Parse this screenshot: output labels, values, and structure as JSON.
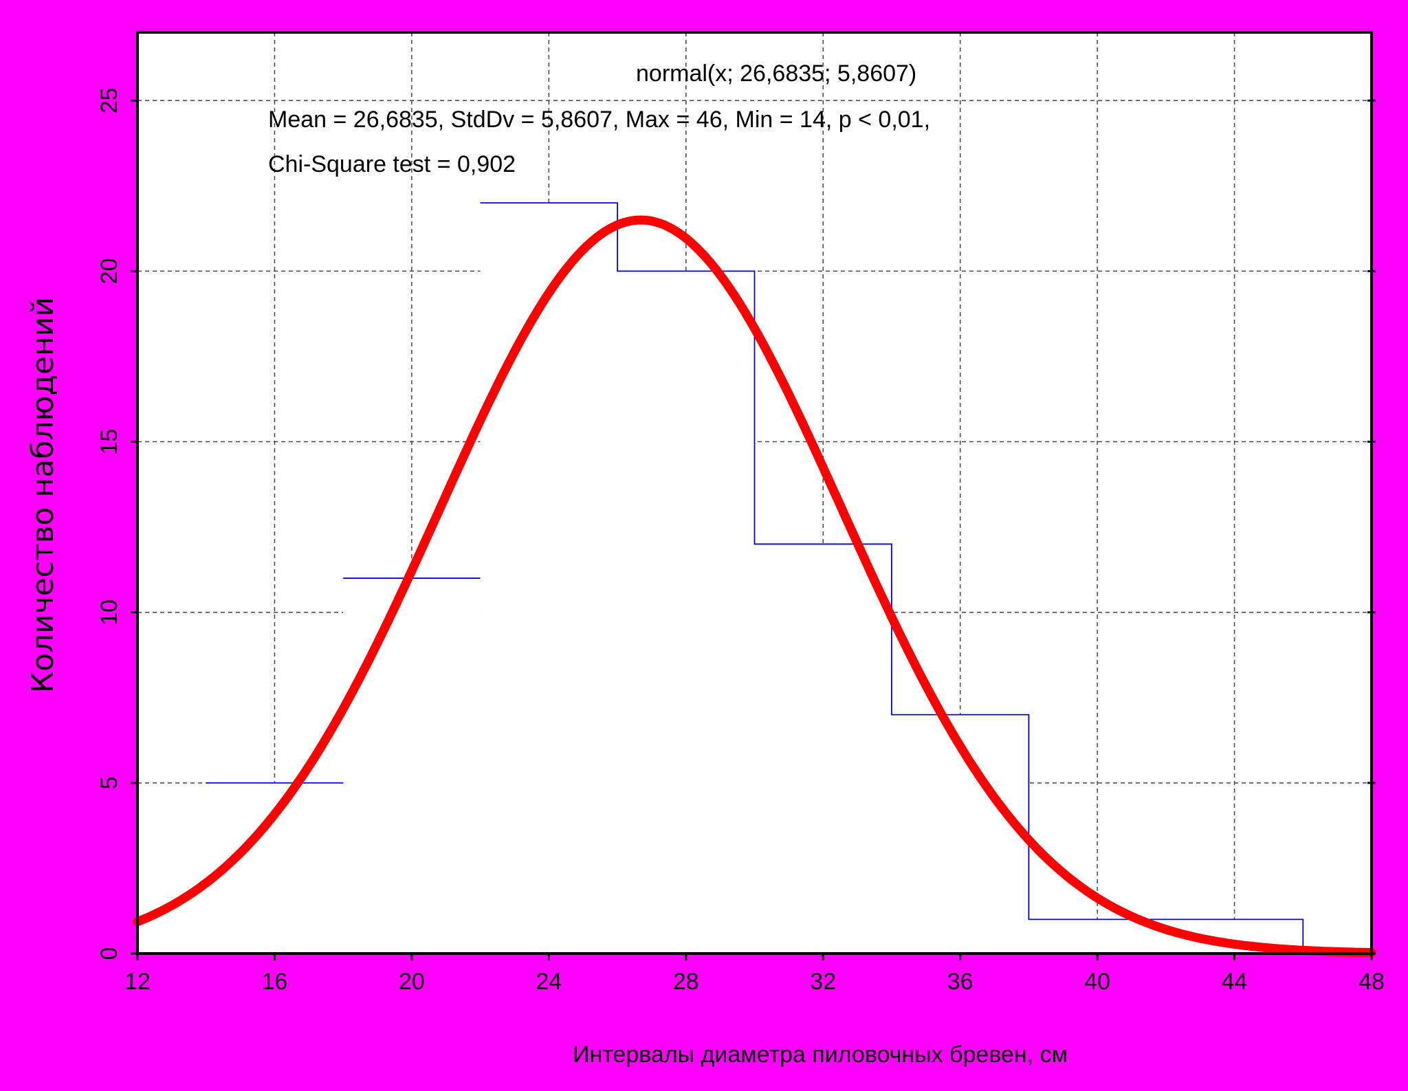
{
  "chart_data": {
    "type": "bar",
    "subtype": "histogram-with-normal-fit",
    "xlabel": "Интервалы диаметра пиловочных бревен, см",
    "ylabel": "Количество наблюдений",
    "xlim": [
      12,
      48
    ],
    "ylim": [
      0,
      27
    ],
    "x_ticks": [
      "12",
      "16",
      "20",
      "24",
      "28",
      "32",
      "36",
      "40",
      "44",
      "48"
    ],
    "x_tick_values": [
      12,
      16,
      20,
      24,
      28,
      32,
      36,
      40,
      44,
      48
    ],
    "y_ticks": [
      "0",
      "5",
      "10",
      "15",
      "20",
      "25"
    ],
    "y_tick_values": [
      0,
      5,
      10,
      15,
      20,
      25
    ],
    "grid": true,
    "bins": [
      {
        "from": 14,
        "to": 18,
        "count": 5
      },
      {
        "from": 18,
        "to": 22,
        "count": 11
      },
      {
        "from": 22,
        "to": 26,
        "count": 22
      },
      {
        "from": 26,
        "to": 30,
        "count": 20
      },
      {
        "from": 30,
        "to": 34,
        "count": 12
      },
      {
        "from": 34,
        "to": 38,
        "count": 7
      },
      {
        "from": 38,
        "to": 46,
        "count": 1
      }
    ],
    "normal_fit": {
      "mean": 26.6835,
      "sd": 5.8607,
      "peak": 21.5
    },
    "annotations": {
      "formula": "normal(x; 26,6835; 5,8607)",
      "stats": "Mean = 26,6835, StdDv = 5,8607, Max = 46, Min = 14, p < 0,01,",
      "chi": "Chi-Square test = 0,902"
    },
    "colors": {
      "background": "#ff00ff",
      "plot": "#ffffff",
      "histogram": "#0000ff",
      "curve": "#ff0000",
      "grid": "#444444"
    }
  }
}
